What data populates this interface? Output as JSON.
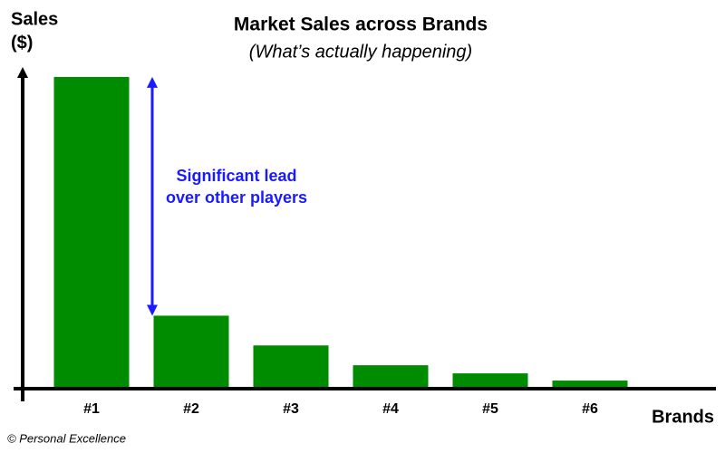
{
  "chart_data": {
    "type": "bar",
    "title": "Market Sales across Brands",
    "subtitle": "(What’s actually happening)",
    "y_label": [
      "Sales",
      "($)"
    ],
    "x_label": "Brands",
    "categories": [
      "#1",
      "#2",
      "#3",
      "#4",
      "#5",
      "#6"
    ],
    "values": [
      344,
      79,
      46,
      24,
      15,
      7
    ],
    "color": "#008c00",
    "ylim": [
      0,
      357
    ],
    "annotation": {
      "lines": [
        "Significant lead",
        "over other players"
      ],
      "color": "#1a1aff"
    },
    "credit": "© Personal Excellence"
  }
}
